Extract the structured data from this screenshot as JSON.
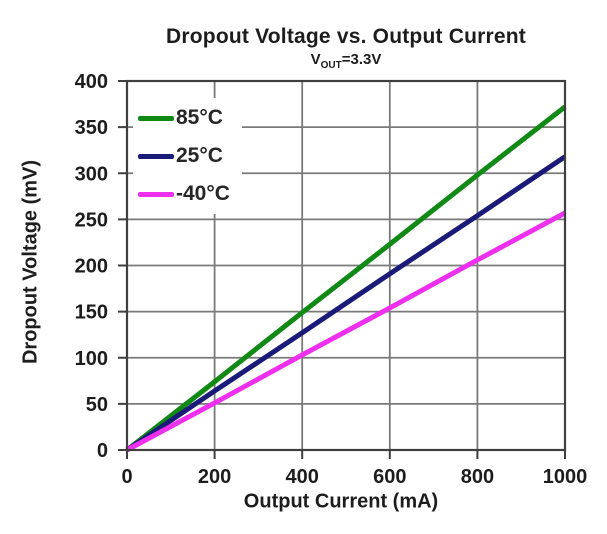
{
  "page": {
    "background": "#ffffff"
  },
  "chart_data": {
    "type": "line",
    "title": "Dropout Voltage vs. Output Current",
    "subtitle_parts": {
      "pre": "V",
      "sub": "OUT",
      "post": "=3.3V"
    },
    "xlabel": "Output Current (mA)",
    "ylabel": "Dropout Voltage (mV)",
    "xlim": [
      0,
      1000
    ],
    "ylim": [
      0,
      400
    ],
    "x_ticks": [
      0,
      200,
      400,
      600,
      800,
      1000
    ],
    "y_ticks": [
      0,
      50,
      100,
      150,
      200,
      250,
      300,
      350,
      400
    ],
    "grid": true,
    "legend_position": "top-left",
    "colors": {
      "grid": "#7a7a7a",
      "frame": "#3f3f3f",
      "text": "#1d1d1d"
    },
    "series": [
      {
        "name": "85°C",
        "color": "#108a14",
        "x": [
          0,
          200,
          400,
          600,
          800,
          1000
        ],
        "y": [
          0,
          74,
          149,
          223,
          298,
          372
        ]
      },
      {
        "name": "25°C",
        "color": "#1a1a78",
        "x": [
          0,
          200,
          400,
          600,
          800,
          1000
        ],
        "y": [
          0,
          64,
          127,
          191,
          254,
          318
        ]
      },
      {
        "name": "-40°C",
        "color": "#ee2fee",
        "x": [
          0,
          200,
          400,
          600,
          800,
          1000
        ],
        "y": [
          0,
          51,
          103,
          154,
          206,
          257
        ]
      }
    ]
  }
}
